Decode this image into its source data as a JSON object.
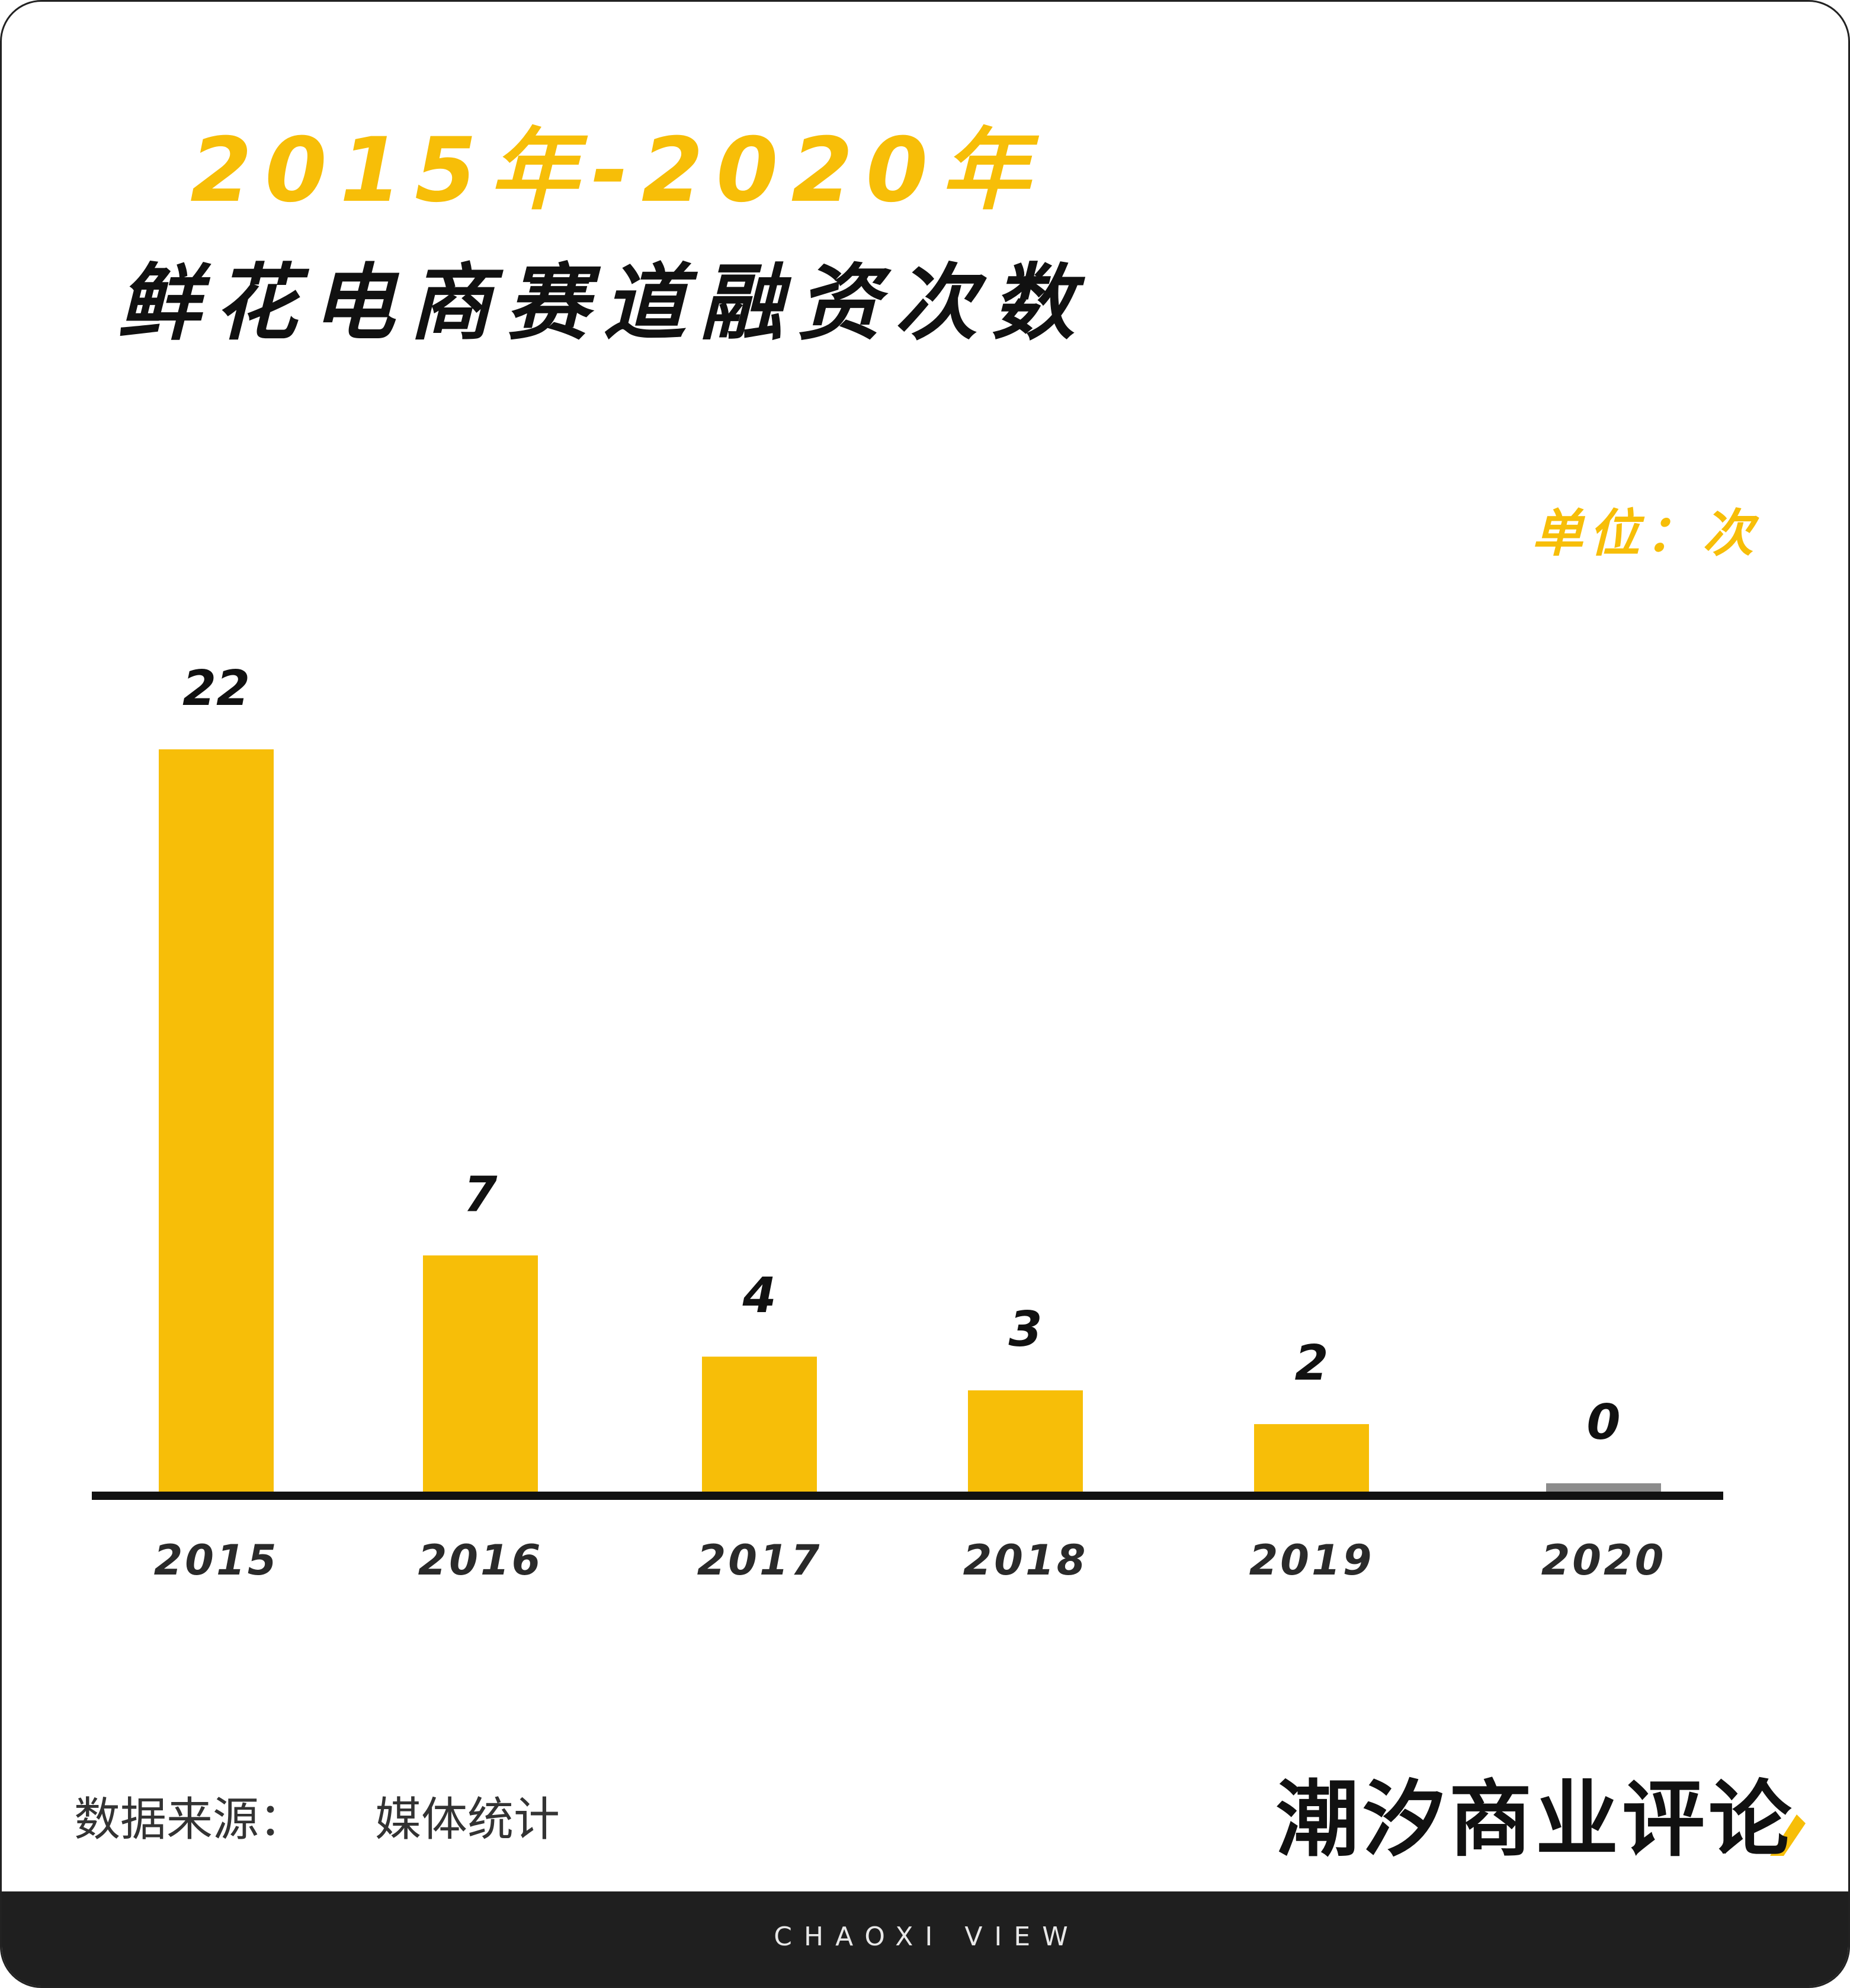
{
  "colors": {
    "accent": "#F7BE08",
    "zero_bar": "#8c8c8c",
    "text_dark": "#111111",
    "footer_bg": "#1f1f1f"
  },
  "header": {
    "title_line1": "2015年-2020年",
    "title_line2": "鲜花电商赛道融资次数",
    "unit": "单位：次"
  },
  "source": {
    "label": "数据来源：",
    "value": "媒体统计"
  },
  "brand": {
    "name": "潮汐商业评论",
    "tagline": "CHAOXI VIEW"
  },
  "chart_data": {
    "type": "bar",
    "categories": [
      "2015",
      "2016",
      "2017",
      "2018",
      "2019",
      "2020"
    ],
    "values": [
      22,
      7,
      4,
      3,
      2,
      0
    ],
    "title": "鲜花电商赛道融资次数",
    "subtitle": "2015年-2020年",
    "xlabel": "",
    "ylabel": "",
    "unit": "单位：次",
    "ylim": [
      0,
      22
    ],
    "grid": false,
    "legend": "none",
    "data_labels": [
      "22",
      "7",
      "4",
      "3",
      "2",
      "0"
    ]
  }
}
